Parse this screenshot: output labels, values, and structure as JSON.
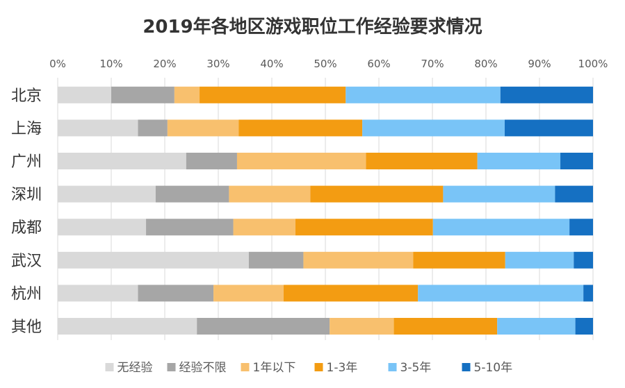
{
  "chart_data": {
    "type": "bar",
    "orientation": "horizontal",
    "stacked": true,
    "title": "2019年各地区游戏职位工作经验要求情况",
    "categories": [
      "北京",
      "上海",
      "广州",
      "深圳",
      "成都",
      "武汉",
      "杭州",
      "其他"
    ],
    "x_ticks": [
      "0%",
      "10%",
      "20%",
      "30%",
      "40%",
      "50%",
      "60%",
      "70%",
      "80%",
      "90%",
      "100%"
    ],
    "xlim": [
      0,
      100
    ],
    "grid": "vertical",
    "legend_position": "bottom",
    "series": [
      {
        "name": "无经验",
        "color": "#d9d9d9",
        "values": [
          10.0,
          15.0,
          24.0,
          18.3,
          16.5,
          35.7,
          15.0,
          26.0
        ]
      },
      {
        "name": "经验不限",
        "color": "#a6a6a6",
        "values": [
          11.8,
          5.5,
          9.5,
          13.7,
          16.3,
          10.2,
          14.1,
          24.8
        ]
      },
      {
        "name": "1年以下",
        "color": "#f8c06e",
        "values": [
          4.7,
          13.3,
          24.1,
          15.2,
          11.6,
          20.5,
          13.1,
          12.0
        ]
      },
      {
        "name": "1-3年",
        "color": "#f39c12",
        "values": [
          27.3,
          23.1,
          20.8,
          24.8,
          25.7,
          17.2,
          25.1,
          19.3
        ]
      },
      {
        "name": "3-5年",
        "color": "#79c4f7",
        "values": [
          28.9,
          26.6,
          15.5,
          20.9,
          25.5,
          12.8,
          30.9,
          14.6
        ]
      },
      {
        "name": "5-10年",
        "color": "#1570c2",
        "values": [
          17.3,
          16.5,
          6.1,
          7.1,
          4.4,
          3.6,
          1.8,
          3.3
        ]
      }
    ]
  }
}
